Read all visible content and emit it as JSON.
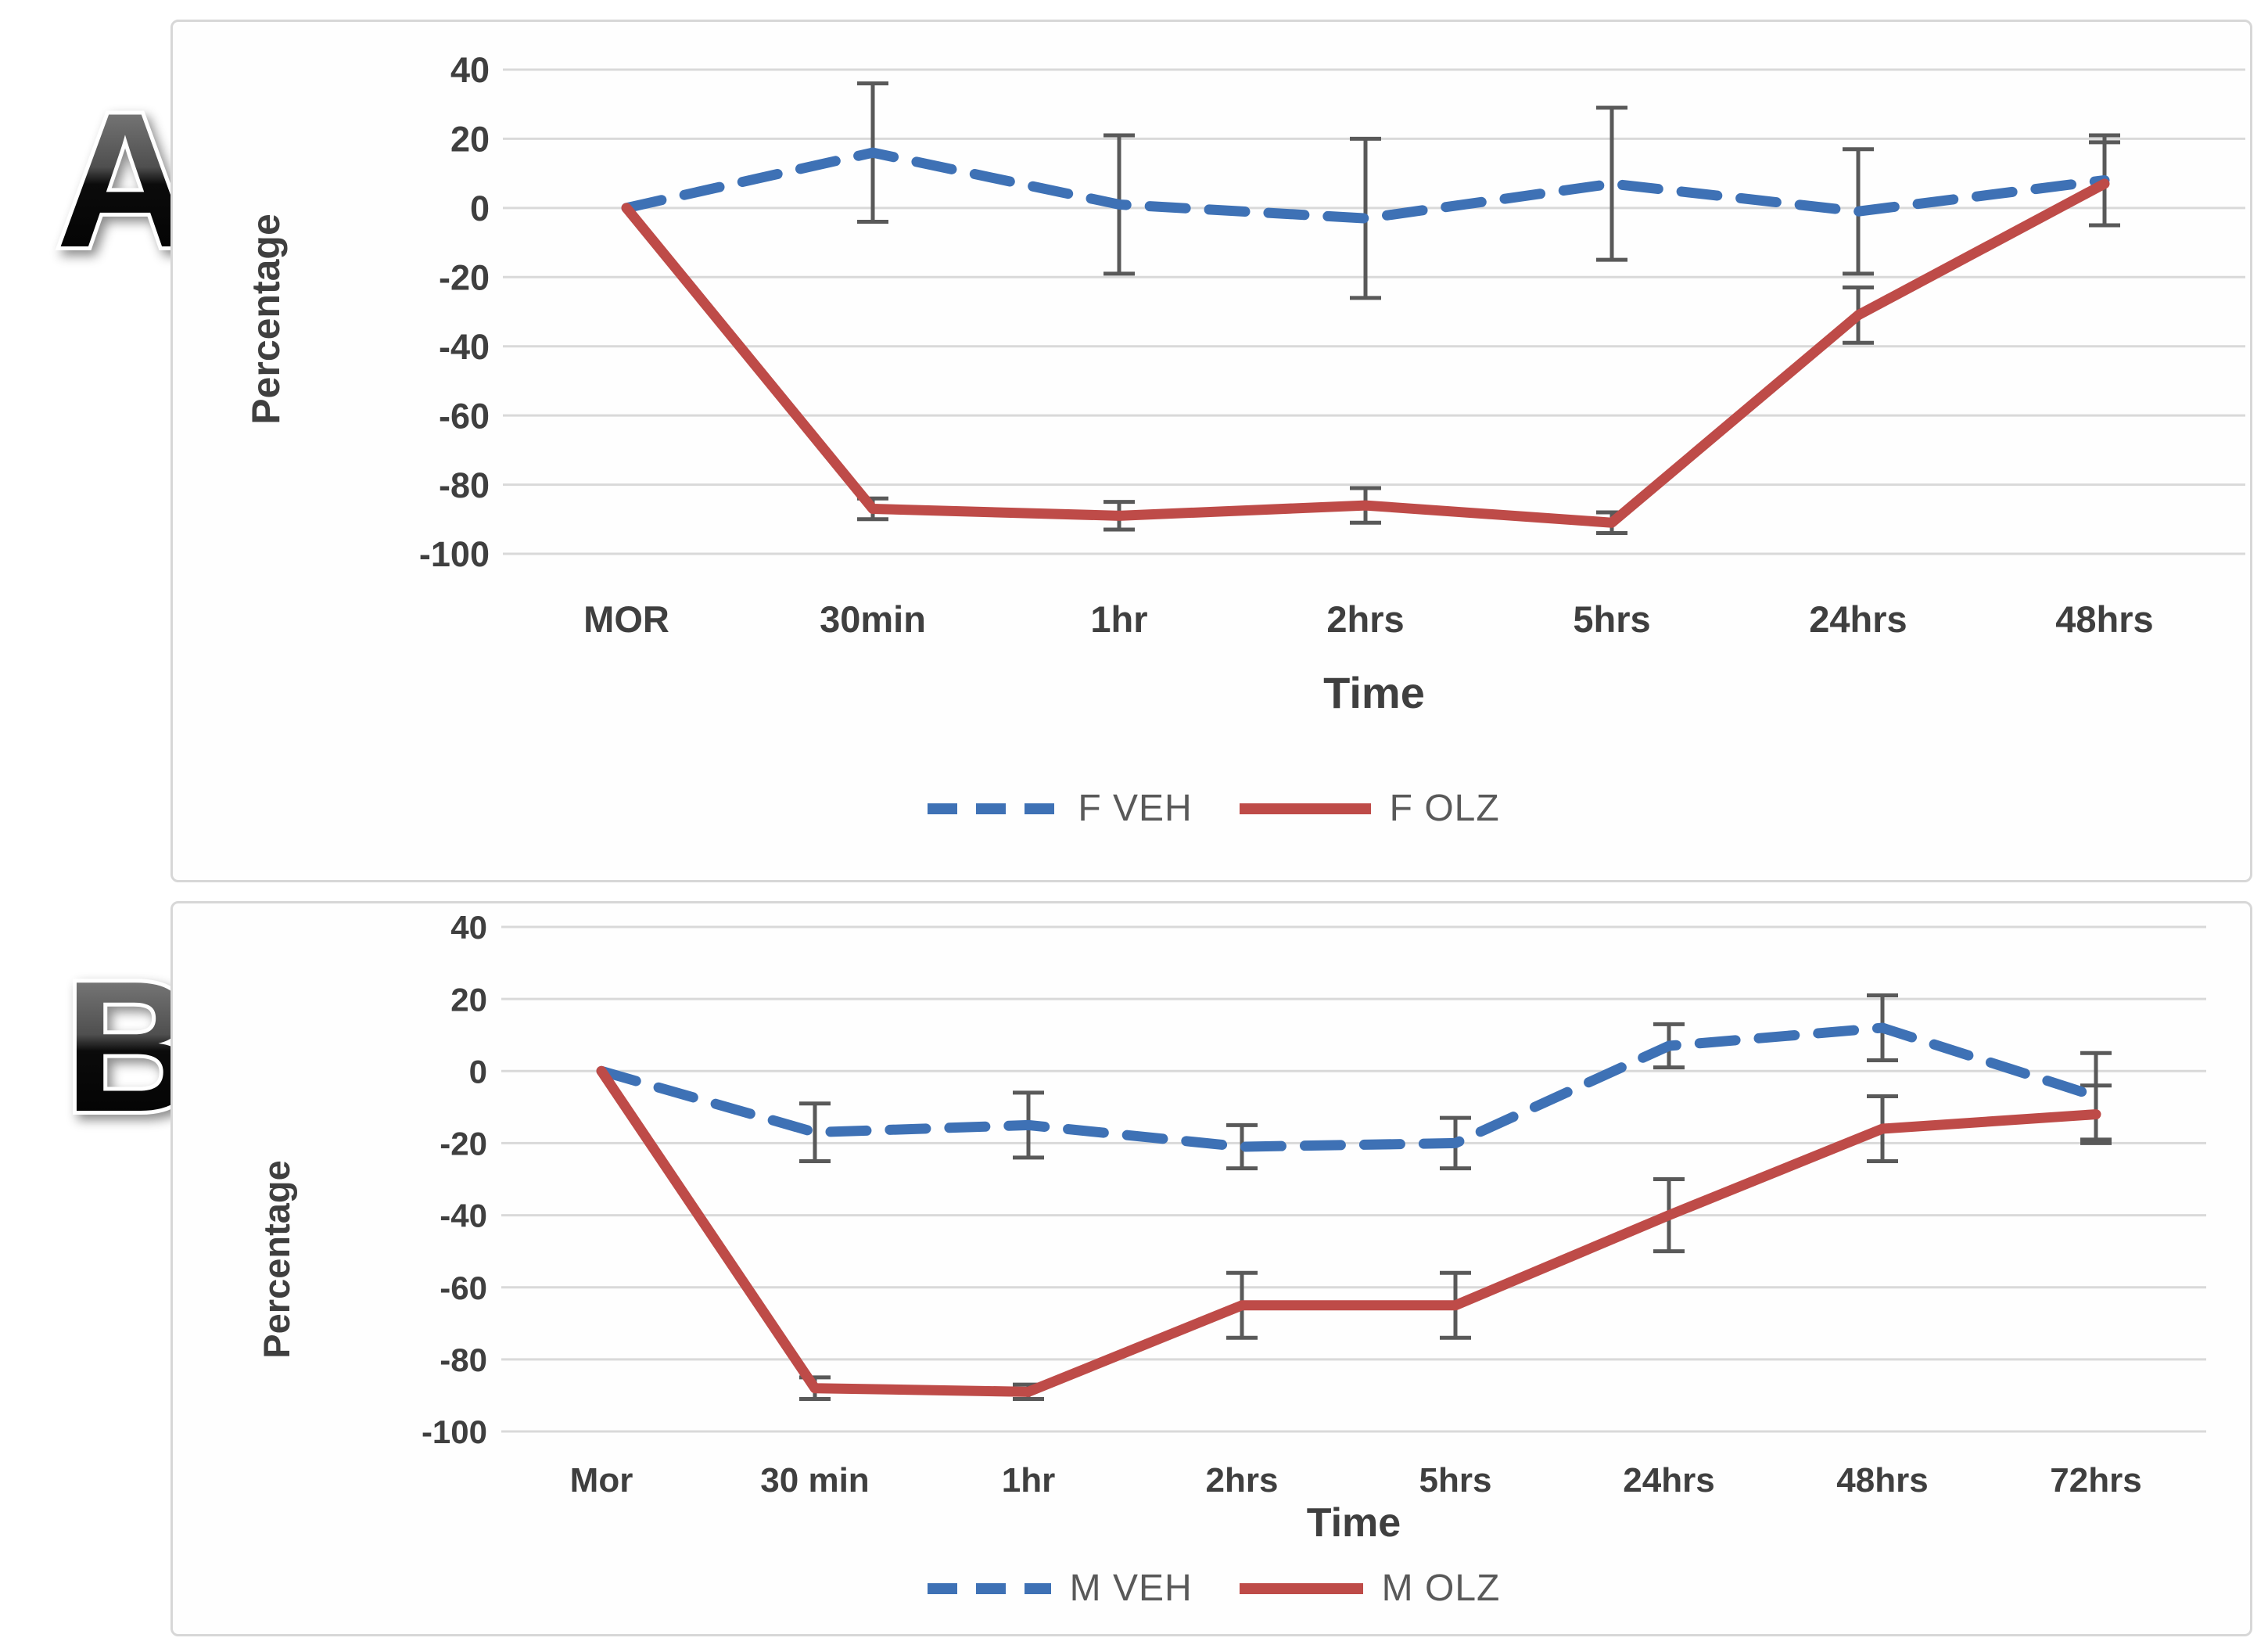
{
  "figure_type": "two-panel line chart with error bars",
  "chart_data": [
    {
      "type": "line",
      "panel_label": "A",
      "title": "",
      "xlabel": "Time",
      "ylabel": "Percentage",
      "categories": [
        "MOR",
        "30min",
        "1hr",
        "2hrs",
        "5hrs",
        "24hrs",
        "48hrs"
      ],
      "ylim": [
        -100,
        40
      ],
      "yticks": [
        40,
        20,
        0,
        -20,
        -40,
        -60,
        -80,
        -100
      ],
      "grid": true,
      "legend_position": "bottom",
      "series": [
        {
          "name": "F VEH",
          "style": "dashed",
          "color": "#3E71B5",
          "values": [
            0,
            16,
            1,
            -3,
            7,
            -1,
            8
          ],
          "error": [
            0,
            20,
            20,
            23,
            22,
            18,
            13
          ]
        },
        {
          "name": "F OLZ",
          "style": "solid",
          "color": "#BE4B48",
          "values": [
            0,
            -87,
            -89,
            -86,
            -91,
            -31,
            7
          ],
          "error": [
            0,
            3,
            4,
            5,
            3,
            8,
            12
          ]
        }
      ]
    },
    {
      "type": "line",
      "panel_label": "B",
      "title": "",
      "xlabel": "Time",
      "ylabel": "Percentage",
      "categories": [
        "Mor",
        "30 min",
        "1hr",
        "2hrs",
        "5hrs",
        "24hrs",
        "48hrs",
        "72hrs"
      ],
      "ylim": [
        -100,
        40
      ],
      "yticks": [
        40,
        20,
        0,
        -20,
        -40,
        -60,
        -80,
        -100
      ],
      "grid": true,
      "legend_position": "bottom",
      "series": [
        {
          "name": "M VEH",
          "style": "dashed",
          "color": "#3E71B5",
          "values": [
            0,
            -17,
            -15,
            -21,
            -20,
            7,
            12,
            -7
          ],
          "error": [
            0,
            8,
            9,
            6,
            7,
            6,
            9,
            12
          ]
        },
        {
          "name": "M OLZ",
          "style": "solid",
          "color": "#BE4B48",
          "values": [
            0,
            -88,
            -89,
            -65,
            -65,
            -40,
            -16,
            -12
          ],
          "error": [
            0,
            3,
            2,
            9,
            9,
            10,
            9,
            8
          ]
        }
      ]
    }
  ],
  "style": {
    "grid_color": "#d9d9d9",
    "error_bar_color": "#595959",
    "tick_label_color": "#3f3f3f",
    "legend_text_color": "#595959"
  }
}
